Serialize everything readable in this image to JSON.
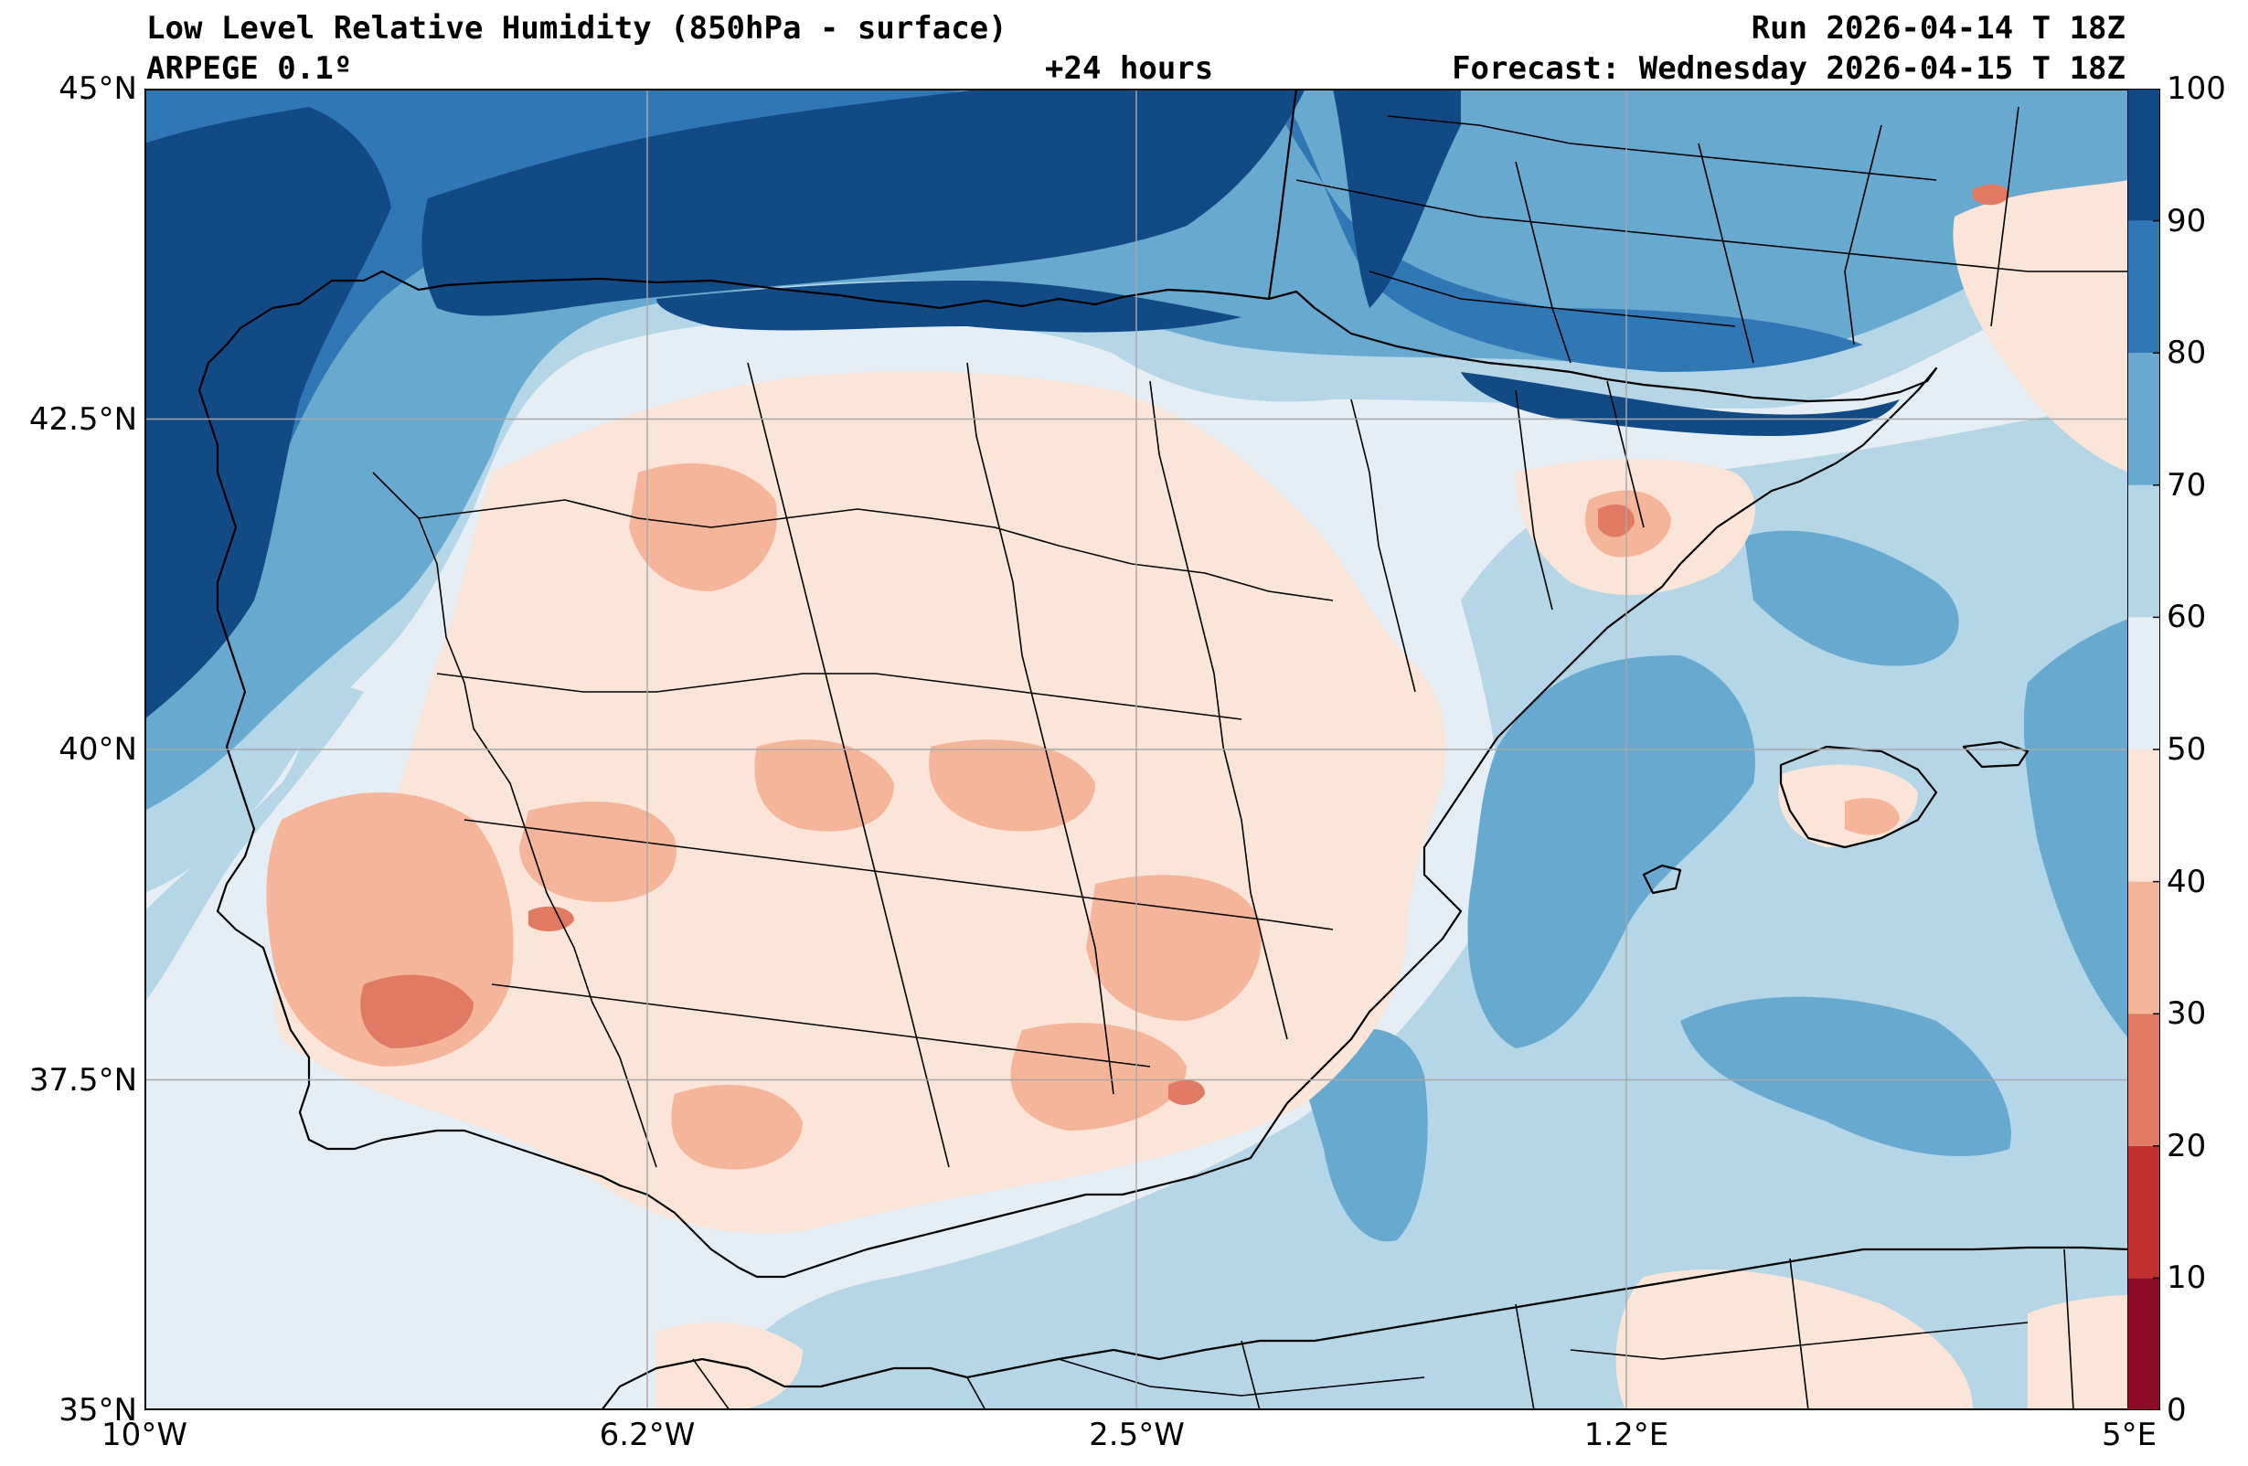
{
  "header": {
    "title": "Low Level Relative Humidity (850hPa - surface)",
    "model": "ARPEGE 0.1º",
    "lead": "+24 hours",
    "run": "Run 2026-04-14 T 18Z",
    "forecast": "Forecast: Wednesday 2026-04-15 T 18Z"
  },
  "map": {
    "lon_range": [
      -10,
      5
    ],
    "lat_range": [
      35,
      45
    ],
    "lat_ticks": [
      {
        "value": 45,
        "label": "45°N"
      },
      {
        "value": 42.5,
        "label": "42.5°N"
      },
      {
        "value": 40,
        "label": "40°N"
      },
      {
        "value": 37.5,
        "label": "37.5°N"
      },
      {
        "value": 35,
        "label": "35°N"
      }
    ],
    "lon_ticks": [
      {
        "value": -10,
        "label": "10°W"
      },
      {
        "value": -6.2,
        "label": "6.2°W"
      },
      {
        "value": -2.5,
        "label": "2.5°W"
      },
      {
        "value": 1.2,
        "label": "1.2°E"
      },
      {
        "value": 5,
        "label": "5°E"
      }
    ],
    "gridlines": true,
    "coastline_color": "#000000"
  },
  "colorbar": {
    "levels": [
      "0",
      "10",
      "20",
      "30",
      "40",
      "50",
      "60",
      "70",
      "80",
      "90",
      "100"
    ],
    "colors": [
      "#8b0a26",
      "#c2312f",
      "#e07a62",
      "#f4b59a",
      "#fbe4d8",
      "#e5eef5",
      "#b4d6e7",
      "#68a9cf",
      "#2f78b5",
      "#124a86"
    ]
  }
}
